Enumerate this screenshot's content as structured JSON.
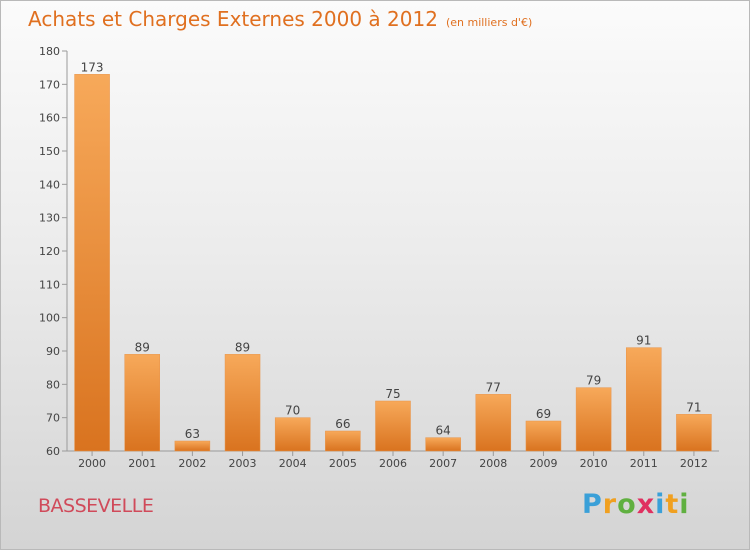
{
  "header": {
    "title": "Achats et Charges Externes 2000 à 2012",
    "unit": "(en milliers d'€)"
  },
  "footer": {
    "commune": "BASSEVELLE",
    "logo_letters": [
      "P",
      "r",
      "o",
      "x",
      "i",
      "t",
      "i"
    ],
    "logo_colors": [
      "#3aa0d8",
      "#f0a020",
      "#60b040",
      "#e03060",
      "#3aa0d8",
      "#f0a020",
      "#60b040"
    ]
  },
  "colors": {
    "title": "#e07020",
    "bar_top": "#f7a95a",
    "bar_bottom": "#d9731f",
    "commune": "#d04a5a"
  },
  "chart_data": {
    "type": "bar",
    "title": "Achats et Charges Externes 2000 à 2012",
    "subtitle": "(en milliers d'€)",
    "categories": [
      "2000",
      "2001",
      "2002",
      "2003",
      "2004",
      "2005",
      "2006",
      "2007",
      "2008",
      "2009",
      "2010",
      "2011",
      "2012"
    ],
    "values": [
      173,
      89,
      63,
      89,
      70,
      66,
      75,
      64,
      77,
      69,
      79,
      91,
      71
    ],
    "ylim": [
      60,
      180
    ],
    "yticks": [
      60,
      70,
      80,
      90,
      100,
      110,
      120,
      130,
      140,
      150,
      160,
      170,
      180
    ],
    "xlabel": "",
    "ylabel": "",
    "grid": false
  }
}
